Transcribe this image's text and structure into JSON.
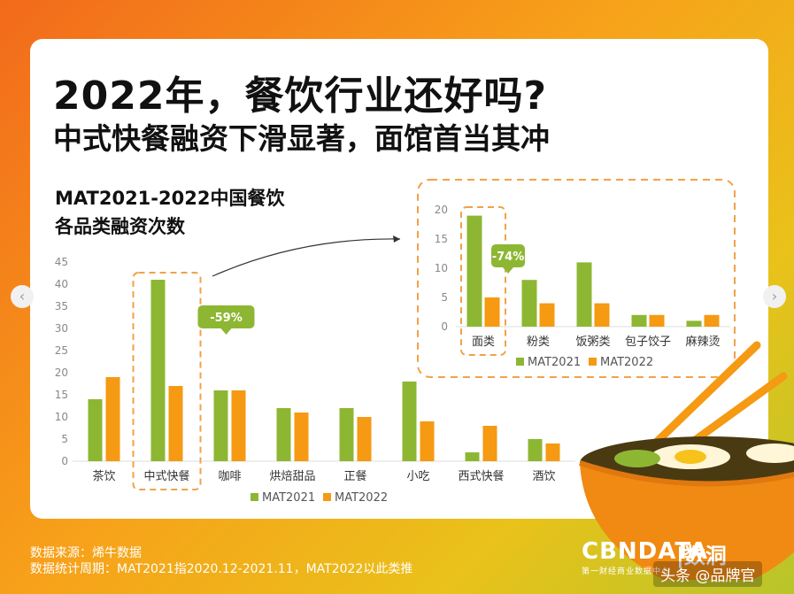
{
  "headline": "2022年，餐饮行业还好吗?",
  "subheadline": "中式快餐融资下滑显著，面馆首当其冲",
  "chart_title_line1": "MAT2021-2022中国餐饮",
  "chart_title_line2": "各品类融资次数",
  "source_line1": "数据来源：烯牛数据",
  "source_line2": "数据统计周期：MAT2021指2020.12-2021.11，MAT2022以此类推",
  "brand": "CBNDATA",
  "brand_cn": "|数洞",
  "brand_tag": "第一财经商业数据中心",
  "toutiao_handle": "头条 @品牌官",
  "colors": {
    "mat2021": "#8db733",
    "mat2022": "#f59a12",
    "callout_border": "#f0a24a"
  },
  "icons": [
    "chevron-left-icon",
    "chevron-right-icon",
    "noodle-bowl-illustration"
  ],
  "chart_data": [
    {
      "type": "bar",
      "title": "MAT2021-2022中国餐饮各品类融资次数",
      "categories": [
        "茶饮",
        "中式快餐",
        "咖啡",
        "烘焙甜品",
        "正餐",
        "小吃",
        "西式快餐",
        "酒饮"
      ],
      "series": [
        {
          "name": "MAT2021",
          "values": [
            14,
            41,
            16,
            12,
            12,
            18,
            2,
            5
          ]
        },
        {
          "name": "MAT2022",
          "values": [
            19,
            17,
            16,
            11,
            10,
            9,
            8,
            4
          ]
        }
      ],
      "ylim": [
        0,
        45
      ],
      "yticks": [
        0,
        5,
        10,
        15,
        20,
        25,
        30,
        35,
        40,
        45
      ],
      "grid": false,
      "legend": "bottom-center",
      "highlight_category": "中式快餐",
      "annotation": "-59%"
    },
    {
      "type": "bar",
      "title": "",
      "categories": [
        "面类",
        "粉类",
        "饭粥类",
        "包子饺子",
        "麻辣烫"
      ],
      "series": [
        {
          "name": "MAT2021",
          "values": [
            19,
            8,
            11,
            2,
            1
          ]
        },
        {
          "name": "MAT2022",
          "values": [
            5,
            4,
            4,
            2,
            2
          ]
        }
      ],
      "ylim": [
        0,
        20
      ],
      "yticks": [
        0,
        5,
        10,
        15,
        20
      ],
      "grid": false,
      "legend": "bottom-center",
      "highlight_category": "面类",
      "annotation": "-74%"
    }
  ]
}
